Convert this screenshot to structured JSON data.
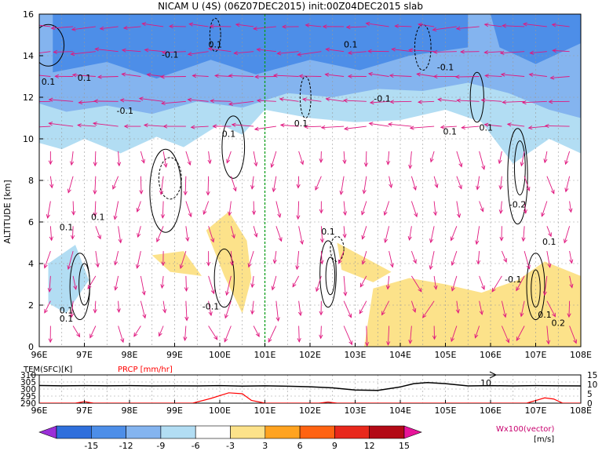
{
  "title": "NICAM U (4S) (06Z07DEC2015) init:00Z04DEC2015 slab",
  "chart_data": [
    {
      "type": "heatmap",
      "name": "cross-section",
      "title": "NICAM U (4S) (06Z07DEC2015) init:00Z04DEC2015 slab",
      "xlabel": "",
      "ylabel": "ALTITUDE [km]",
      "x_ticks": [
        "96E",
        "97E",
        "98E",
        "99E",
        "100E",
        "101E",
        "102E",
        "103E",
        "104E",
        "105E",
        "106E",
        "107E",
        "108E"
      ],
      "xlim": [
        96,
        108
      ],
      "y_ticks": [
        "0",
        "2",
        "4",
        "6",
        "8",
        "10",
        "12",
        "14",
        "16"
      ],
      "ylim": [
        0,
        16
      ],
      "grid": true,
      "highlight_x": 101,
      "contour_labels": [
        {
          "x": 96.2,
          "y": 12.6,
          "text": "0.1"
        },
        {
          "x": 97.0,
          "y": 12.8,
          "text": "0.1"
        },
        {
          "x": 97.9,
          "y": 11.2,
          "text": "-0.1"
        },
        {
          "x": 98.9,
          "y": 13.9,
          "text": "-0.1"
        },
        {
          "x": 99.9,
          "y": 14.4,
          "text": "0.1"
        },
        {
          "x": 101.8,
          "y": 10.6,
          "text": "0.1"
        },
        {
          "x": 102.9,
          "y": 14.4,
          "text": "0.1"
        },
        {
          "x": 103.6,
          "y": 11.8,
          "text": "-0.1"
        },
        {
          "x": 105.0,
          "y": 13.3,
          "text": "-0.1"
        },
        {
          "x": 105.1,
          "y": 10.2,
          "text": "0.1"
        },
        {
          "x": 105.9,
          "y": 10.4,
          "text": "0.1"
        },
        {
          "x": 106.6,
          "y": 6.7,
          "text": "-0.2"
        },
        {
          "x": 106.5,
          "y": 3.1,
          "text": "-0.1"
        },
        {
          "x": 100.2,
          "y": 10.1,
          "text": "0.1"
        },
        {
          "x": 97.3,
          "y": 6.1,
          "text": "0.1"
        },
        {
          "x": 96.6,
          "y": 5.6,
          "text": "0.1"
        },
        {
          "x": 99.8,
          "y": 1.8,
          "text": "-0.1"
        },
        {
          "x": 102.4,
          "y": 5.4,
          "text": "0.1"
        },
        {
          "x": 107.3,
          "y": 4.9,
          "text": "0.1"
        },
        {
          "x": 107.2,
          "y": 1.4,
          "text": "0.1"
        },
        {
          "x": 107.5,
          "y": 1.0,
          "text": "0.2"
        },
        {
          "x": 96.6,
          "y": 1.6,
          "text": "0.1"
        },
        {
          "x": 96.6,
          "y": 1.2,
          "text": "0.1"
        }
      ]
    },
    {
      "type": "line",
      "name": "surface-panel",
      "x_ticks": [
        "96E",
        "97E",
        "98E",
        "99E",
        "100E",
        "101E",
        "102E",
        "103E",
        "104E",
        "105E",
        "106E",
        "107E",
        "108E"
      ],
      "xlim": [
        96,
        108
      ],
      "left_axis": {
        "label": "TEM(SFC)[K]",
        "ticks": [
          "310",
          "305",
          "300",
          "295",
          "290"
        ],
        "ylim": [
          290,
          310
        ]
      },
      "right_axis": {
        "label": "PRCP [mm/hr]",
        "ticks": [
          "15",
          "10",
          "5",
          "0"
        ],
        "ylim": [
          0,
          15
        ]
      },
      "wind_arrow_label": "10",
      "series": [
        {
          "name": "TEM(SFC)[K]",
          "color": "#000000",
          "x": [
            96,
            96.5,
            97,
            97.5,
            98,
            98.5,
            99,
            99.5,
            100,
            100.5,
            101,
            101.5,
            102,
            102.5,
            103,
            103.5,
            104,
            104.3,
            104.6,
            105,
            105.5,
            106,
            106.5,
            107,
            107.5,
            108
          ],
          "values": [
            302.5,
            302.3,
            302.4,
            302.3,
            302.4,
            302.2,
            302.3,
            302.2,
            302.4,
            302.1,
            302.3,
            302.0,
            301.6,
            300.8,
            299.3,
            299.0,
            301.5,
            303.8,
            304.6,
            303.8,
            302.2,
            302.4,
            302.2,
            302.4,
            302.3,
            302.2
          ]
        },
        {
          "name": "PRCP [mm/hr]",
          "color": "#ff0000",
          "x": [
            96,
            96.8,
            97.0,
            97.2,
            99.4,
            99.8,
            100.2,
            100.5,
            100.7,
            101.0,
            102.2,
            102.4,
            102.6,
            106.8,
            107.2,
            107.4,
            107.6,
            108
          ],
          "values": [
            0,
            0,
            0.8,
            0,
            0,
            2.5,
            5.5,
            5.0,
            1.5,
            0,
            0,
            0.6,
            0,
            0,
            2.8,
            2.2,
            0,
            0
          ]
        }
      ]
    },
    {
      "type": "table",
      "name": "colorbar",
      "unit": "[m/s]",
      "ticks": [
        "-15",
        "-12",
        "-9",
        "-6",
        "-3",
        "3",
        "6",
        "9",
        "12",
        "15"
      ],
      "colors": [
        "#9b2fd8",
        "#2f6fdc",
        "#4d8ee8",
        "#84b4ef",
        "#b2ddf3",
        "#ffffff",
        "#fce28a",
        "#ffa320",
        "#ff6312",
        "#e8281c",
        "#b30a16",
        "#e8149a"
      ],
      "vector_legend": "Wx100(vector)"
    }
  ],
  "colors": {
    "vector": "#e0187f",
    "highlight_line": "#0a9e1a",
    "grid": "#999999",
    "temperature_line": "#000000",
    "precip_line": "#ff0000",
    "prcp_label": "#ff0000",
    "vector_legend": "#c8006e"
  }
}
